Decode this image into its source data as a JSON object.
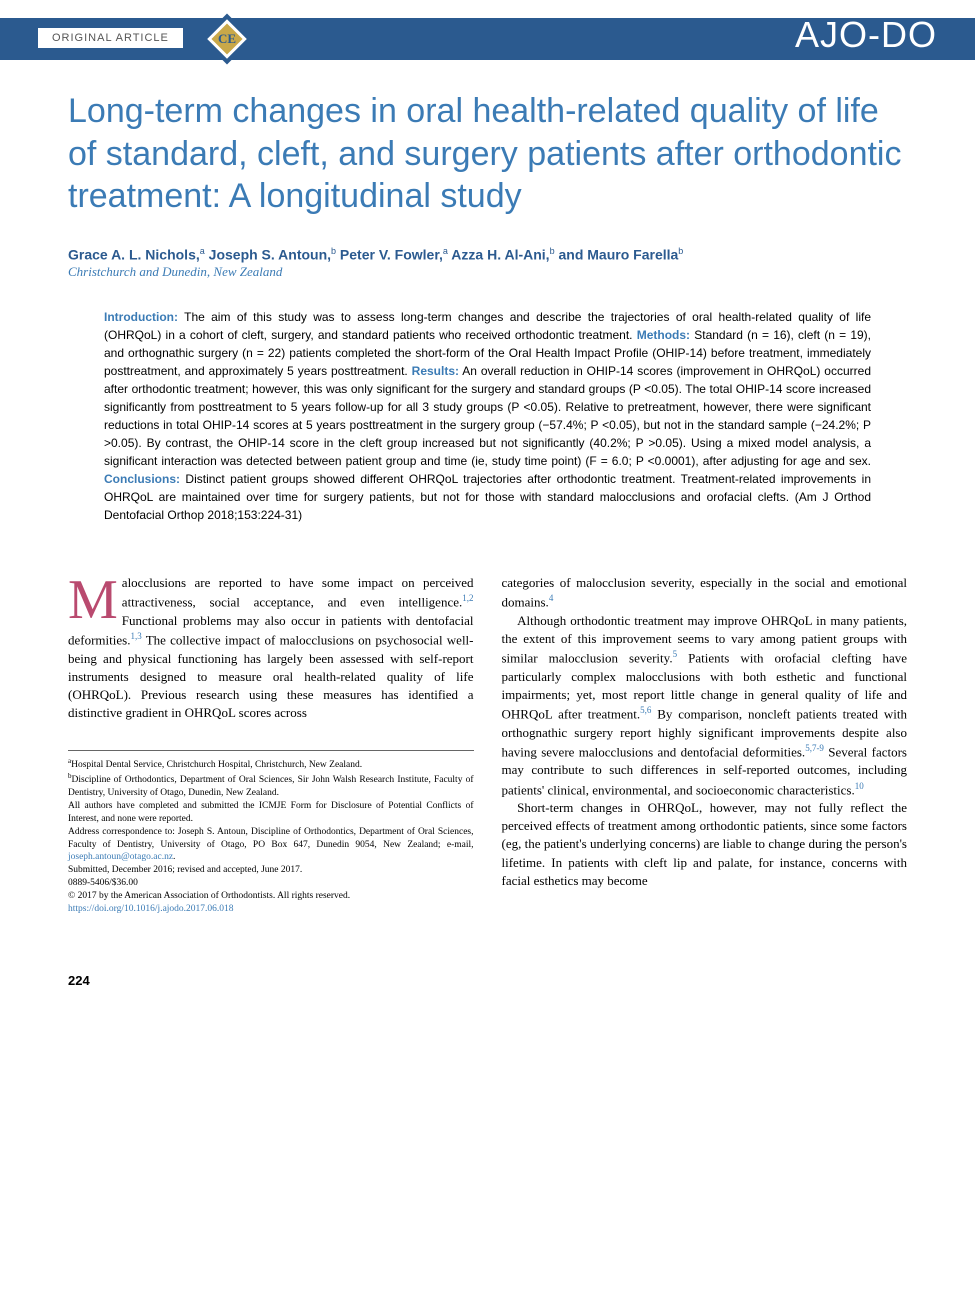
{
  "header": {
    "article_type": "ORIGINAL ARTICLE",
    "ce_badge": "CE",
    "journal_logo": "AJO-DO"
  },
  "title": "Long-term changes in oral health-related quality of life of standard, cleft, and surgery patients after orthodontic treatment: A longitudinal study",
  "authors_html": "Grace A. L. Nichols,<sup>a</sup> Joseph S. Antoun,<sup>b</sup> Peter V. Fowler,<sup>a</sup> Azza H. Al-Ani,<sup>b</sup> and Mauro Farella<sup>b</sup>",
  "affiliation": "Christchurch and Dunedin, New Zealand",
  "abstract": {
    "introduction_label": "Introduction:",
    "introduction": " The aim of this study was to assess long-term changes and describe the trajectories of oral health-related quality of life (OHRQoL) in a cohort of cleft, surgery, and standard patients who received orthodontic treatment. ",
    "methods_label": "Methods:",
    "methods": " Standard (n = 16), cleft (n = 19), and orthognathic surgery (n = 22) patients completed the short-form of the Oral Health Impact Profile (OHIP-14) before treatment, immediately posttreatment, and approximately 5 years posttreatment. ",
    "results_label": "Results:",
    "results": " An overall reduction in OHIP-14 scores (improvement in OHRQoL) occurred after orthodontic treatment; however, this was only significant for the surgery and standard groups (P <0.05). The total OHIP-14 score increased significantly from posttreatment to 5 years follow-up for all 3 study groups (P <0.05). Relative to pretreatment, however, there were significant reductions in total OHIP-14 scores at 5 years posttreatment in the surgery group (−57.4%; P <0.05), but not in the standard sample (−24.2%; P >0.05). By contrast, the OHIP-14 score in the cleft group increased but not significantly (40.2%; P >0.05). Using a mixed model analysis, a significant interaction was detected between patient group and time (ie, study time point) (F = 6.0; P <0.0001), after adjusting for age and sex. ",
    "conclusions_label": "Conclusions:",
    "conclusions": " Distinct patient groups showed different OHRQoL trajectories after orthodontic treatment. Treatment-related improvements in OHRQoL are maintained over time for surgery patients, but not for those with standard malocclusions and orofacial clefts. (Am J Orthod Dentofacial Orthop 2018;153:224-31)"
  },
  "body": {
    "col1": {
      "p1_first": "M",
      "p1_rest": "alocclusions are reported to have some impact on perceived attractiveness, social acceptance, and even intelligence.",
      "p1_ref1": "1,2",
      "p1_cont": " Functional problems may also occur in patients with dentofacial deformities.",
      "p1_ref2": "1,3",
      "p1_end": " The collective impact of malocclusions on psychosocial well-being and physical functioning has largely been assessed with self-report instruments designed to measure oral health-related quality of life (OHRQoL). Previous research using these measures has identified a distinctive gradient in OHRQoL scores across"
    },
    "col2": {
      "p1": "categories of malocclusion severity, especially in the social and emotional domains.",
      "p1_ref": "4",
      "p2a": "Although orthodontic treatment may improve OHRQoL in many patients, the extent of this improvement seems to vary among patient groups with similar malocclusion severity.",
      "p2_ref1": "5",
      "p2b": " Patients with orofacial clefting have particularly complex malocclusions with both esthetic and functional impairments; yet, most report little change in general quality of life and OHRQoL after treatment.",
      "p2_ref2": "5,6",
      "p2c": " By comparison, noncleft patients treated with orthognathic surgery report highly significant improvements despite also having severe malocclusions and dentofacial deformities.",
      "p2_ref3": "5,7-9",
      "p2d": " Several factors may contribute to such differences in self-reported outcomes, including patients' clinical, environmental, and socioeconomic characteristics.",
      "p2_ref4": "10",
      "p3": "Short-term changes in OHRQoL, however, may not fully reflect the perceived effects of treatment among orthodontic patients, since some factors (eg, the patient's underlying concerns) are liable to change during the person's lifetime. In patients with cleft lip and palate, for instance, concerns with facial esthetics may become"
    }
  },
  "footnotes": {
    "a": "Hospital Dental Service, Christchurch Hospital, Christchurch, New Zealand.",
    "b": "Discipline of Orthodontics, Department of Oral Sciences, Sir John Walsh Research Institute, Faculty of Dentistry, University of Otago, Dunedin, New Zealand.",
    "coi": "All authors have completed and submitted the ICMJE Form for Disclosure of Potential Conflicts of Interest, and none were reported.",
    "corr": "Address correspondence to: Joseph S. Antoun, Discipline of Orthodontics, Department of Oral Sciences, Faculty of Dentistry, University of Otago, PO Box 647, Dunedin 9054, New Zealand; e-mail, ",
    "email": "joseph.antoun@otago.ac.nz",
    "dates": "Submitted, December 2016; revised and accepted, June 2017.",
    "issn": "0889-5406/$36.00",
    "copyright": "© 2017 by the American Association of Orthodontists. All rights reserved.",
    "doi": "https://doi.org/10.1016/j.ajodo.2017.06.018"
  },
  "page_number": "224",
  "colors": {
    "header_bar": "#2b5a8f",
    "accent_blue": "#3b7bb5",
    "dropcap": "#b94a6f",
    "badge_gold": "#c9a849"
  }
}
